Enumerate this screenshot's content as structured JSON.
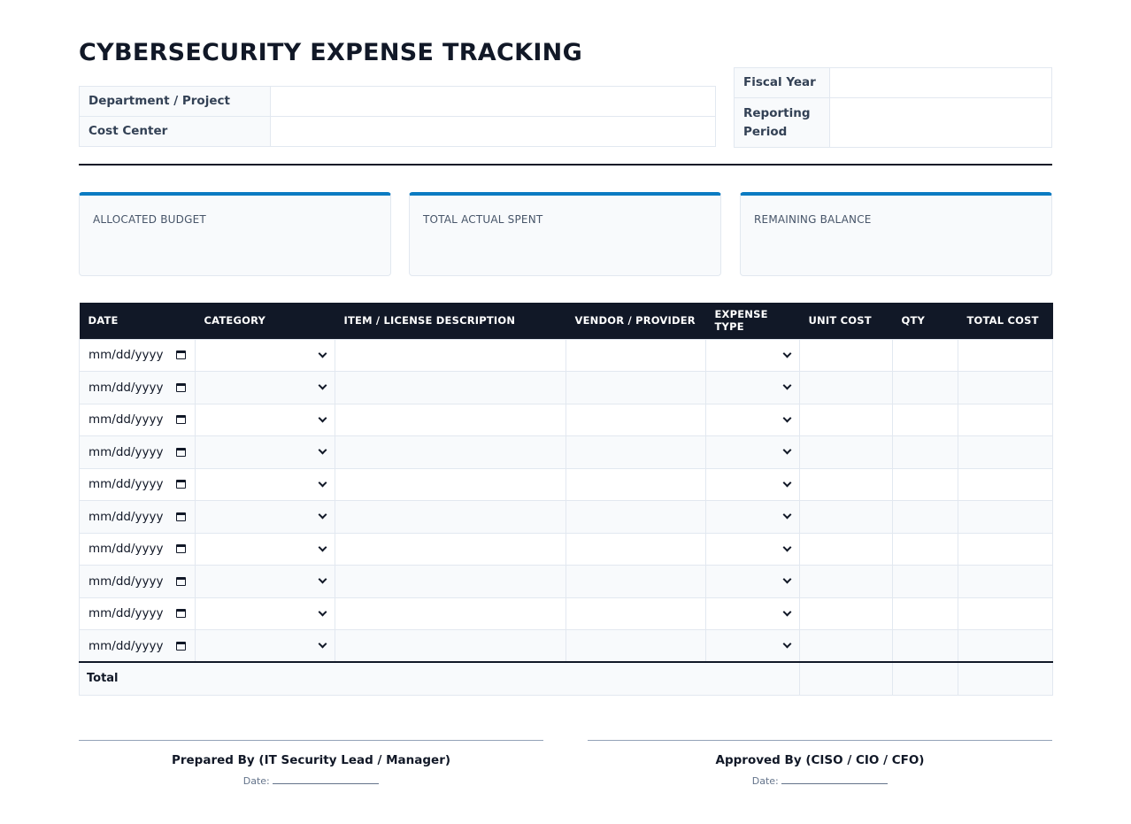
{
  "title": "CYBERSECURITY EXPENSE TRACKING",
  "info_left": [
    {
      "label": "Department / Project",
      "value": ""
    },
    {
      "label": "Cost Center",
      "value": ""
    }
  ],
  "info_right": [
    {
      "label": "Fiscal Year",
      "value": ""
    },
    {
      "label": "Reporting Period",
      "value": ""
    }
  ],
  "summary_cards": [
    {
      "label": "ALLOCATED BUDGET",
      "value": ""
    },
    {
      "label": "TOTAL ACTUAL SPENT",
      "value": ""
    },
    {
      "label": "REMAINING BALANCE",
      "value": ""
    }
  ],
  "table": {
    "headers": [
      "DATE",
      "CATEGORY",
      "ITEM / LICENSE DESCRIPTION",
      "VENDOR / PROVIDER",
      "EXPENSE TYPE",
      "UNIT COST",
      "QTY",
      "TOTAL COST"
    ],
    "date_placeholder": "mm/dd/yyyy",
    "row_count": 10,
    "total_label": "Total"
  },
  "signatures": [
    {
      "title": "Prepared By (IT Security Lead / Manager)",
      "date_label": "Date:"
    },
    {
      "title": "Approved By (CISO / CIO / CFO)",
      "date_label": "Date:"
    }
  ],
  "colors": {
    "accent": "#0a7bc2",
    "header_bg": "#111827"
  }
}
